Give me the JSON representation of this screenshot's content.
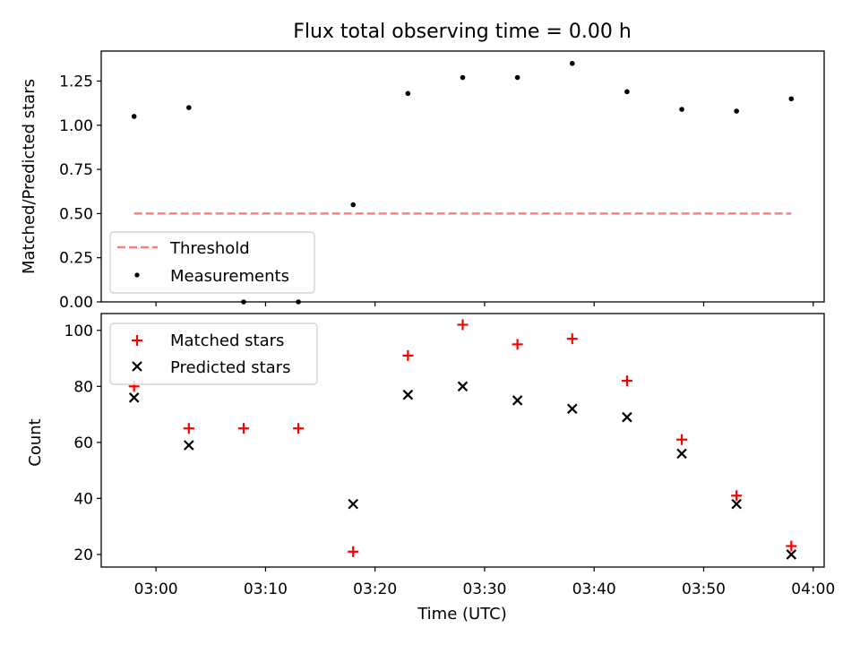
{
  "chart_data": [
    {
      "type": "scatter",
      "title": "Flux total observing time = 0.00 h",
      "xlabel": "",
      "ylabel": "Matched/Predicted stars",
      "ylim": [
        0,
        1.42
      ],
      "yticks": [
        "0.00",
        "0.25",
        "0.50",
        "0.75",
        "1.00",
        "1.25"
      ],
      "threshold": {
        "name": "Threshold",
        "y": 0.5,
        "x_start": "02:58",
        "x_end": "03:58",
        "color": "#ff7f7f",
        "style": "dashed"
      },
      "series": [
        {
          "name": "Measurements",
          "color": "#000000",
          "x": [
            "02:58",
            "03:03",
            "03:08",
            "03:13",
            "03:18",
            "03:23",
            "03:28",
            "03:33",
            "03:38",
            "03:43",
            "03:48",
            "03:53",
            "03:58"
          ],
          "y": [
            1.05,
            1.1,
            0.0,
            0.0,
            0.55,
            1.18,
            1.27,
            1.27,
            1.35,
            1.19,
            1.09,
            1.08,
            1.15
          ]
        }
      ],
      "legend_loc": "lower-left"
    },
    {
      "type": "scatter",
      "title": "",
      "xlabel": "Time (UTC)",
      "ylabel": "Count",
      "xlim": [
        "02:55",
        "04:01"
      ],
      "ylim": [
        15.5,
        106
      ],
      "xticks": [
        "03:00",
        "03:10",
        "03:20",
        "03:30",
        "03:40",
        "03:50",
        "04:00"
      ],
      "yticks": [
        "20",
        "40",
        "60",
        "80",
        "100"
      ],
      "series": [
        {
          "name": "Matched stars",
          "marker": "plus",
          "color": "#ff0000",
          "x": [
            "02:58",
            "03:03",
            "03:08",
            "03:13",
            "03:18",
            "03:23",
            "03:28",
            "03:33",
            "03:38",
            "03:43",
            "03:48",
            "03:53",
            "03:58"
          ],
          "y": [
            80,
            65,
            65,
            65,
            21,
            91,
            102,
            95,
            97,
            82,
            61,
            41,
            23
          ]
        },
        {
          "name": "Predicted stars",
          "marker": "x",
          "color": "#000000",
          "x": [
            "02:58",
            "03:03",
            "03:18",
            "03:23",
            "03:28",
            "03:33",
            "03:38",
            "03:43",
            "03:48",
            "03:53",
            "03:58"
          ],
          "y": [
            76,
            59,
            38,
            77,
            80,
            75,
            72,
            69,
            56,
            38,
            20
          ]
        }
      ],
      "legend_loc": "upper-left"
    }
  ]
}
